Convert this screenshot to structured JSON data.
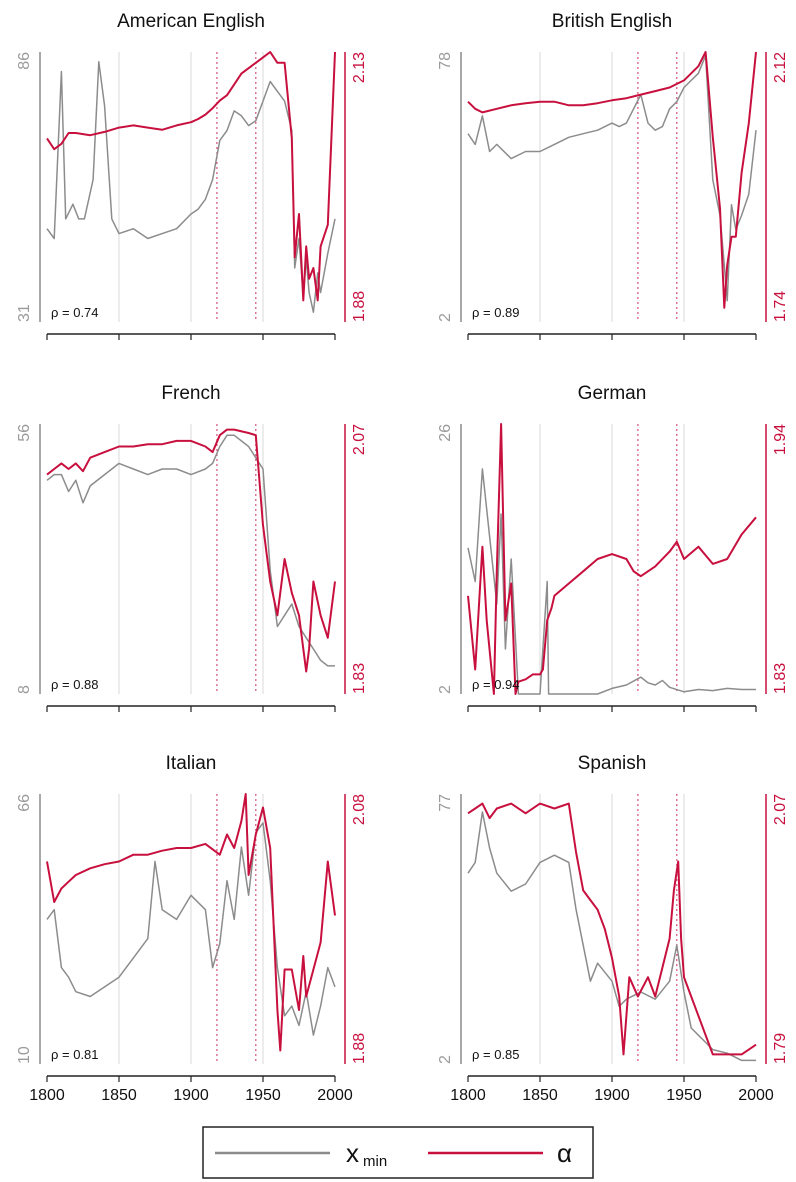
{
  "colors": {
    "xmin": "#8c8c8c",
    "alpha": "#c8103e",
    "grid": "#d9d9d9",
    "event": "#d4507a"
  },
  "legend": {
    "xmin_label": "x",
    "xmin_sub": "min",
    "alpha_label": "α"
  },
  "chart_data": [
    {
      "type": "line",
      "title": "American English",
      "rho": "ρ = 0.74",
      "x_range": [
        1800,
        2000
      ],
      "x_ticks": [
        "1800",
        "1850",
        "1900",
        "1950",
        "2000"
      ],
      "left_axis": {
        "min": 31,
        "max": 86,
        "labels": [
          "86",
          "31"
        ]
      },
      "right_axis": {
        "min": 1.88,
        "max": 2.13,
        "labels": [
          "2.13",
          "1.88"
        ]
      },
      "event_years": [
        1918,
        1945
      ],
      "series": [
        {
          "key": "xmin",
          "axis": "left",
          "years": [
            1800,
            1805,
            1810,
            1813,
            1818,
            1822,
            1826,
            1832,
            1836,
            1840,
            1845,
            1850,
            1860,
            1870,
            1880,
            1890,
            1900,
            1905,
            1910,
            1915,
            1920,
            1925,
            1930,
            1935,
            1940,
            1945,
            1950,
            1955,
            1960,
            1965,
            1970,
            1972,
            1975,
            1978,
            1980,
            1982,
            1985,
            1988,
            1990,
            1995,
            2000
          ],
          "values": [
            50,
            48,
            82,
            52,
            55,
            52,
            52,
            60,
            84,
            75,
            52,
            49,
            50,
            48,
            49,
            50,
            53,
            54,
            56,
            60,
            68,
            70,
            74,
            73,
            71,
            72,
            76,
            80,
            78,
            76,
            70,
            42,
            48,
            36,
            44,
            37,
            33,
            41,
            37,
            45,
            52
          ]
        },
        {
          "key": "alpha",
          "axis": "right",
          "years": [
            1800,
            1805,
            1810,
            1815,
            1820,
            1830,
            1840,
            1850,
            1860,
            1870,
            1880,
            1890,
            1900,
            1905,
            1910,
            1915,
            1920,
            1925,
            1930,
            1935,
            1940,
            1945,
            1950,
            1955,
            1960,
            1965,
            1970,
            1972,
            1975,
            1978,
            1980,
            1982,
            1985,
            1988,
            1990,
            1995,
            2000
          ],
          "values": [
            2.05,
            2.04,
            2.045,
            2.055,
            2.055,
            2.053,
            2.056,
            2.06,
            2.062,
            2.06,
            2.058,
            2.062,
            2.065,
            2.068,
            2.072,
            2.078,
            2.085,
            2.09,
            2.1,
            2.11,
            2.115,
            2.12,
            2.125,
            2.13,
            2.12,
            2.12,
            2.05,
            1.94,
            1.98,
            1.9,
            1.95,
            1.92,
            1.93,
            1.9,
            1.95,
            1.97,
            2.13
          ]
        }
      ]
    },
    {
      "type": "line",
      "title": "British English",
      "rho": "ρ = 0.89",
      "x_range": [
        1800,
        2000
      ],
      "x_ticks": [
        "1800",
        "1850",
        "1900",
        "1950",
        "2000"
      ],
      "left_axis": {
        "min": 2,
        "max": 78,
        "labels": [
          "78",
          "2"
        ]
      },
      "right_axis": {
        "min": 1.74,
        "max": 2.12,
        "labels": [
          "2.12",
          "1.74"
        ]
      },
      "event_years": [
        1918,
        1945
      ],
      "series": [
        {
          "key": "xmin",
          "axis": "left",
          "years": [
            1800,
            1805,
            1810,
            1815,
            1820,
            1830,
            1840,
            1850,
            1860,
            1870,
            1880,
            1890,
            1900,
            1905,
            1910,
            1915,
            1920,
            1925,
            1930,
            1935,
            1940,
            1945,
            1950,
            1955,
            1960,
            1965,
            1970,
            1975,
            1978,
            1980,
            1983,
            1986,
            1990,
            1995,
            2000
          ],
          "values": [
            55,
            52,
            60,
            50,
            52,
            48,
            50,
            50,
            52,
            54,
            55,
            56,
            58,
            57,
            58,
            62,
            66,
            58,
            56,
            57,
            62,
            64,
            68,
            70,
            72,
            77,
            42,
            32,
            18,
            8,
            35,
            28,
            32,
            38,
            56
          ]
        },
        {
          "key": "alpha",
          "axis": "right",
          "years": [
            1800,
            1805,
            1810,
            1820,
            1830,
            1840,
            1850,
            1860,
            1870,
            1880,
            1890,
            1900,
            1910,
            1920,
            1930,
            1940,
            1950,
            1955,
            1960,
            1965,
            1970,
            1972,
            1975,
            1978,
            1980,
            1983,
            1986,
            1990,
            1995,
            2000
          ],
          "values": [
            2.05,
            2.04,
            2.035,
            2.04,
            2.045,
            2.048,
            2.05,
            2.05,
            2.045,
            2.045,
            2.048,
            2.052,
            2.055,
            2.06,
            2.065,
            2.07,
            2.08,
            2.09,
            2.1,
            2.12,
            2.0,
            1.96,
            1.9,
            1.76,
            1.82,
            1.86,
            1.86,
            1.95,
            2.02,
            2.12
          ]
        }
      ]
    },
    {
      "type": "line",
      "title": "French",
      "rho": "ρ = 0.88",
      "x_range": [
        1800,
        2000
      ],
      "x_ticks": [
        "1800",
        "1850",
        "1900",
        "1950",
        "2000"
      ],
      "left_axis": {
        "min": 8,
        "max": 56,
        "labels": [
          "56",
          "8"
        ]
      },
      "right_axis": {
        "min": 1.83,
        "max": 2.07,
        "labels": [
          "2.07",
          "1.83"
        ]
      },
      "event_years": [
        1918,
        1945
      ],
      "series": [
        {
          "key": "xmin",
          "axis": "left",
          "years": [
            1800,
            1805,
            1810,
            1815,
            1820,
            1825,
            1830,
            1840,
            1850,
            1860,
            1870,
            1880,
            1890,
            1900,
            1910,
            1915,
            1920,
            1925,
            1930,
            1940,
            1945,
            1950,
            1955,
            1960,
            1965,
            1970,
            1975,
            1980,
            1985,
            1990,
            1995,
            2000
          ],
          "values": [
            46,
            47,
            47,
            44,
            46,
            42,
            45,
            47,
            49,
            48,
            47,
            48,
            48,
            47,
            48,
            49,
            52,
            54,
            54,
            52,
            50,
            48,
            30,
            20,
            22,
            24,
            20,
            18,
            16,
            14,
            13,
            13
          ]
        },
        {
          "key": "alpha",
          "axis": "right",
          "years": [
            1800,
            1805,
            1810,
            1815,
            1820,
            1825,
            1830,
            1840,
            1850,
            1860,
            1870,
            1880,
            1890,
            1900,
            1910,
            1915,
            1920,
            1925,
            1930,
            1940,
            1945,
            1950,
            1955,
            1960,
            1965,
            1970,
            1975,
            1980,
            1982,
            1985,
            1990,
            1995,
            2000
          ],
          "values": [
            2.025,
            2.03,
            2.035,
            2.03,
            2.035,
            2.028,
            2.04,
            2.045,
            2.05,
            2.05,
            2.052,
            2.052,
            2.055,
            2.055,
            2.05,
            2.045,
            2.06,
            2.065,
            2.065,
            2.062,
            2.06,
            1.98,
            1.93,
            1.9,
            1.95,
            1.92,
            1.9,
            1.85,
            1.87,
            1.93,
            1.9,
            1.88,
            1.93
          ]
        }
      ]
    },
    {
      "type": "line",
      "title": "German",
      "rho": "ρ = 0.94",
      "x_range": [
        1800,
        2000
      ],
      "x_ticks": [
        "1800",
        "1850",
        "1900",
        "1950",
        "2000"
      ],
      "left_axis": {
        "min": 2,
        "max": 26,
        "labels": [
          "26",
          "2"
        ]
      },
      "right_axis": {
        "min": 1.83,
        "max": 1.94,
        "labels": [
          "1.94",
          "1.83"
        ]
      },
      "event_years": [
        1918,
        1945
      ],
      "series": [
        {
          "key": "xmin",
          "axis": "left",
          "years": [
            1800,
            1805,
            1810,
            1815,
            1820,
            1823,
            1826,
            1830,
            1835,
            1840,
            1845,
            1850,
            1855,
            1856,
            1860,
            1870,
            1880,
            1890,
            1900,
            1910,
            1920,
            1925,
            1930,
            1935,
            1940,
            1950,
            1960,
            1970,
            1980,
            1990,
            2000
          ],
          "values": [
            15,
            12,
            22,
            16,
            10,
            18,
            6,
            14,
            2,
            2,
            2,
            2,
            12,
            2,
            2,
            2,
            2,
            2,
            2.5,
            2.8,
            3.5,
            3.0,
            2.8,
            3.2,
            2.6,
            2.2,
            2.4,
            2.3,
            2.5,
            2.4,
            2.4
          ]
        },
        {
          "key": "alpha",
          "axis": "right",
          "years": [
            1800,
            1805,
            1810,
            1813,
            1818,
            1820,
            1823,
            1826,
            1830,
            1833,
            1835,
            1840,
            1845,
            1850,
            1852,
            1855,
            1858,
            1860,
            1870,
            1880,
            1890,
            1900,
            1910,
            1915,
            1920,
            1930,
            1940,
            1945,
            1950,
            1960,
            1970,
            1980,
            1990,
            2000
          ],
          "values": [
            1.87,
            1.84,
            1.89,
            1.86,
            1.83,
            1.88,
            1.94,
            1.86,
            1.875,
            1.83,
            1.835,
            1.836,
            1.838,
            1.838,
            1.84,
            1.86,
            1.865,
            1.87,
            1.875,
            1.88,
            1.885,
            1.887,
            1.885,
            1.88,
            1.878,
            1.882,
            1.888,
            1.892,
            1.885,
            1.89,
            1.883,
            1.885,
            1.895,
            1.902
          ]
        }
      ]
    },
    {
      "type": "line",
      "title": "Italian",
      "rho": "ρ = 0.81",
      "x_range": [
        1800,
        2000
      ],
      "x_ticks": [
        "1800",
        "1850",
        "1900",
        "1950",
        "2000"
      ],
      "left_axis": {
        "min": 10,
        "max": 66,
        "labels": [
          "66",
          "10"
        ]
      },
      "right_axis": {
        "min": 1.88,
        "max": 2.08,
        "labels": [
          "2.08",
          "1.88"
        ]
      },
      "event_years": [
        1918,
        1945
      ],
      "series": [
        {
          "key": "xmin",
          "axis": "left",
          "years": [
            1800,
            1805,
            1810,
            1815,
            1820,
            1830,
            1840,
            1850,
            1860,
            1870,
            1875,
            1880,
            1890,
            1900,
            1910,
            1915,
            1920,
            1925,
            1930,
            1935,
            1940,
            1945,
            1950,
            1955,
            1960,
            1965,
            1970,
            1975,
            1980,
            1985,
            1990,
            1995,
            2000
          ],
          "values": [
            40,
            42,
            30,
            28,
            25,
            24,
            26,
            28,
            32,
            36,
            52,
            42,
            40,
            45,
            42,
            30,
            35,
            48,
            40,
            55,
            45,
            58,
            60,
            48,
            30,
            20,
            22,
            18,
            25,
            16,
            22,
            30,
            26
          ]
        },
        {
          "key": "alpha",
          "axis": "right",
          "years": [
            1800,
            1805,
            1810,
            1815,
            1820,
            1830,
            1840,
            1850,
            1860,
            1870,
            1880,
            1890,
            1900,
            1910,
            1920,
            1925,
            1930,
            1935,
            1938,
            1940,
            1945,
            1950,
            1955,
            1960,
            1962,
            1965,
            1970,
            1975,
            1978,
            1980,
            1985,
            1990,
            1995,
            2000
          ],
          "values": [
            2.03,
            2.0,
            2.01,
            2.015,
            2.02,
            2.025,
            2.028,
            2.03,
            2.035,
            2.035,
            2.038,
            2.04,
            2.04,
            2.043,
            2.035,
            2.05,
            2.04,
            2.06,
            2.08,
            2.02,
            2.05,
            2.07,
            2.04,
            1.92,
            1.89,
            1.95,
            1.95,
            1.92,
            1.96,
            1.93,
            1.95,
            1.97,
            2.03,
            1.99
          ]
        }
      ]
    },
    {
      "type": "line",
      "title": "Spanish",
      "rho": "ρ = 0.85",
      "x_range": [
        1800,
        2000
      ],
      "x_ticks": [
        "1800",
        "1850",
        "1900",
        "1950",
        "2000"
      ],
      "left_axis": {
        "min": 2,
        "max": 77,
        "labels": [
          "77",
          "2"
        ]
      },
      "right_axis": {
        "min": 1.79,
        "max": 2.07,
        "labels": [
          "2.07",
          "1.79"
        ]
      },
      "event_years": [
        1918,
        1945
      ],
      "series": [
        {
          "key": "xmin",
          "axis": "left",
          "years": [
            1800,
            1805,
            1810,
            1815,
            1820,
            1830,
            1840,
            1850,
            1860,
            1870,
            1875,
            1880,
            1885,
            1890,
            1900,
            1905,
            1910,
            1920,
            1930,
            1940,
            1945,
            1950,
            1955,
            1960,
            1965,
            1970,
            1980,
            1990,
            2000
          ],
          "values": [
            55,
            58,
            72,
            62,
            55,
            50,
            52,
            58,
            60,
            58,
            45,
            35,
            25,
            30,
            25,
            18,
            20,
            22,
            20,
            25,
            35,
            22,
            12,
            10,
            8,
            6,
            5,
            3,
            3
          ]
        },
        {
          "key": "alpha",
          "axis": "right",
          "years": [
            1800,
            1805,
            1810,
            1815,
            1820,
            1830,
            1840,
            1850,
            1860,
            1870,
            1875,
            1880,
            1885,
            1890,
            1895,
            1900,
            1905,
            1908,
            1912,
            1918,
            1925,
            1930,
            1935,
            1940,
            1943,
            1946,
            1948,
            1950,
            1955,
            1960,
            1965,
            1970,
            1980,
            1990,
            2000
          ],
          "values": [
            2.05,
            2.055,
            2.06,
            2.045,
            2.055,
            2.06,
            2.05,
            2.06,
            2.055,
            2.06,
            2.01,
            1.97,
            1.96,
            1.95,
            1.93,
            1.9,
            1.86,
            1.8,
            1.88,
            1.86,
            1.88,
            1.86,
            1.89,
            1.92,
            1.97,
            2.0,
            1.92,
            1.88,
            1.86,
            1.84,
            1.82,
            1.8,
            1.8,
            1.8,
            1.81
          ]
        }
      ]
    }
  ]
}
